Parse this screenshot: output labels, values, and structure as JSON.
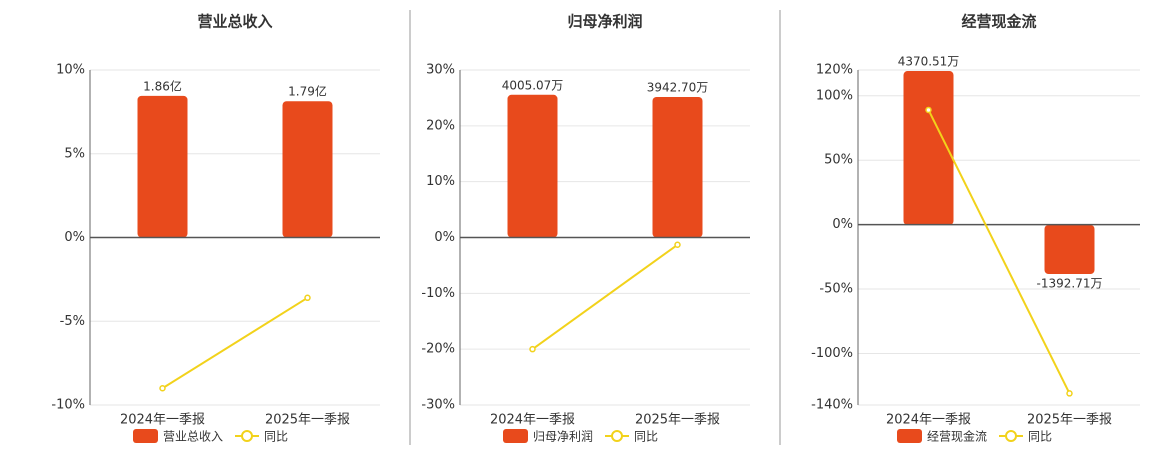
{
  "chart_data": [
    {
      "type": "bar",
      "title": "营业总收入",
      "categories": [
        "2024年一季报",
        "2025年一季报"
      ],
      "series": [
        {
          "name": "营业总收入",
          "type": "bar",
          "axis": "y2",
          "color": "#e84a1c",
          "values": [
            1.86,
            1.79
          ],
          "value_labels": [
            "1.86亿",
            "1.79亿"
          ]
        },
        {
          "name": "同比",
          "type": "line",
          "color": "#f2d21b",
          "values": [
            -9.0,
            -3.6
          ]
        }
      ],
      "ylim": [
        -10,
        10
      ],
      "yticks": [
        {
          "value": -10,
          "label": "-10%"
        },
        {
          "value": -5,
          "label": "-5%"
        },
        {
          "value": 0,
          "label": "0%"
        },
        {
          "value": 5,
          "label": "5%"
        },
        {
          "value": 10,
          "label": "10%"
        }
      ],
      "y2lim": [
        -2.2,
        2.2
      ]
    },
    {
      "type": "bar",
      "title": "归母净利润",
      "categories": [
        "2024年一季报",
        "2025年一季报"
      ],
      "series": [
        {
          "name": "归母净利润",
          "type": "bar",
          "axis": "y2",
          "color": "#e84a1c",
          "values": [
            4005.07,
            3942.7
          ],
          "value_labels": [
            "4005.07万",
            "3942.70万"
          ]
        },
        {
          "name": "同比",
          "type": "line",
          "color": "#f2d21b",
          "values": [
            -20.0,
            -1.3
          ]
        }
      ],
      "ylim": [
        -30,
        30
      ],
      "yticks": [
        {
          "value": -30,
          "label": "-30%"
        },
        {
          "value": -20,
          "label": "-20%"
        },
        {
          "value": -10,
          "label": "-10%"
        },
        {
          "value": 0,
          "label": "0%"
        },
        {
          "value": 10,
          "label": "10%"
        },
        {
          "value": 20,
          "label": "20%"
        },
        {
          "value": 30,
          "label": "30%"
        }
      ],
      "y2lim": [
        -4700,
        4700
      ]
    },
    {
      "type": "bar",
      "title": "经营现金流",
      "categories": [
        "2024年一季报",
        "2025年一季报"
      ],
      "series": [
        {
          "name": "经营现金流",
          "type": "bar",
          "axis": "y2",
          "color": "#e84a1c",
          "values": [
            4370.51,
            -1392.71
          ],
          "value_labels": [
            "4370.51万",
            "-1392.71万"
          ]
        },
        {
          "name": "同比",
          "type": "line",
          "color": "#f2d21b",
          "values": [
            89,
            -131
          ]
        }
      ],
      "ylim": [
        -140,
        120
      ],
      "yticks": [
        {
          "value": -140,
          "label": "-140%"
        },
        {
          "value": -100,
          "label": "-100%"
        },
        {
          "value": -50,
          "label": "-50%"
        },
        {
          "value": 0,
          "label": "0%"
        },
        {
          "value": 50,
          "label": "50%"
        },
        {
          "value": 100,
          "label": "100%"
        },
        {
          "value": 120,
          "label": "120%"
        }
      ],
      "y2lim": [
        -5110,
        4400
      ]
    }
  ]
}
